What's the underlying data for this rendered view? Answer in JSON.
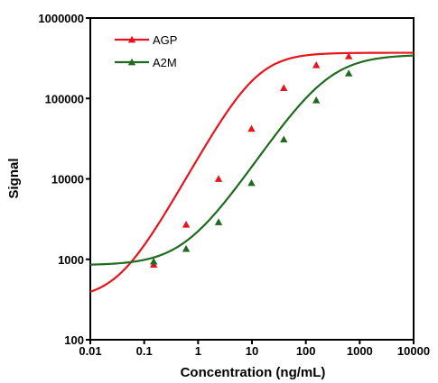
{
  "chart_data": {
    "type": "line",
    "title": "",
    "xlabel": "Concentration (ng/mL)",
    "ylabel": "Signal",
    "x_scale": "log",
    "y_scale": "log",
    "xlim": [
      0.01,
      10000
    ],
    "ylim": [
      100,
      1000000
    ],
    "x_ticks": [
      "0.01",
      "0.1",
      "1",
      "10",
      "100",
      "1000",
      "10000"
    ],
    "y_ticks": [
      "100",
      "1000",
      "10000",
      "100000",
      "1000000"
    ],
    "grid": false,
    "legend_position": "top-left",
    "series": [
      {
        "name": "AGP",
        "color": "#e8141b",
        "marker": "triangle",
        "points": [
          {
            "x": 0.15,
            "y": 860
          },
          {
            "x": 0.6,
            "y": 2700
          },
          {
            "x": 2.4,
            "y": 10000
          },
          {
            "x": 9.8,
            "y": 42000
          },
          {
            "x": 39,
            "y": 135000
          },
          {
            "x": 156,
            "y": 260000
          },
          {
            "x": 625,
            "y": 335000
          }
        ],
        "curve": {
          "bottom": 320,
          "top": 370000,
          "ec50": 12,
          "hill": 1.2
        }
      },
      {
        "name": "A2M",
        "color": "#1e6b1e",
        "marker": "triangle",
        "points": [
          {
            "x": 0.15,
            "y": 940
          },
          {
            "x": 0.6,
            "y": 1350
          },
          {
            "x": 2.4,
            "y": 2900
          },
          {
            "x": 9.8,
            "y": 8900
          },
          {
            "x": 39,
            "y": 31000
          },
          {
            "x": 156,
            "y": 95000
          },
          {
            "x": 625,
            "y": 205000
          }
        ],
        "curve": {
          "bottom": 845,
          "top": 350000,
          "ec50": 250,
          "hill": 1.0
        }
      }
    ]
  }
}
